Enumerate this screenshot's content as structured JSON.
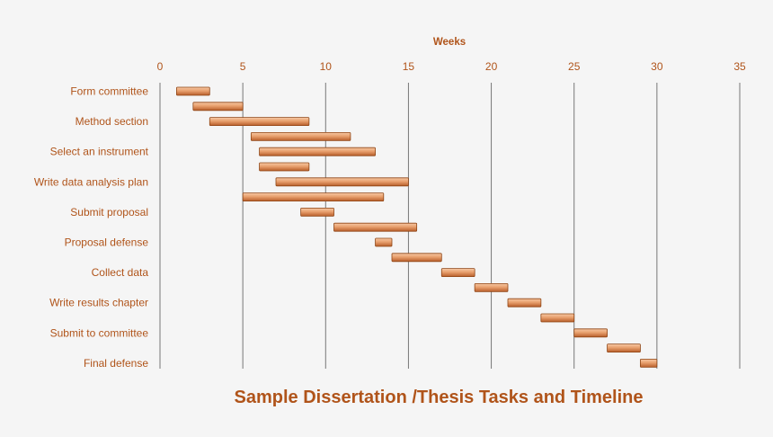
{
  "chart_data": {
    "type": "bar",
    "orientation": "horizontal-gantt",
    "title": "Sample Dissertation /Thesis Tasks and Timeline",
    "xlabel": "Weeks",
    "xlim": [
      0,
      35
    ],
    "x_ticks": [
      0,
      5,
      10,
      15,
      20,
      25,
      30,
      35
    ],
    "grid": "vertical",
    "category_labels": [
      "Form committee",
      "Method section",
      "Select an instrument",
      "Write data analysis plan",
      "Submit proposal",
      "Proposal defense",
      "Collect data",
      "Write results chapter",
      "Submit to committee",
      "Final defense"
    ],
    "tasks": [
      {
        "start": 1,
        "end": 3
      },
      {
        "start": 2,
        "end": 5
      },
      {
        "start": 3,
        "end": 9
      },
      {
        "start": 5.5,
        "end": 11.5
      },
      {
        "start": 6,
        "end": 13
      },
      {
        "start": 6,
        "end": 9
      },
      {
        "start": 7,
        "end": 15
      },
      {
        "start": 5,
        "end": 13.5
      },
      {
        "start": 8.5,
        "end": 10.5
      },
      {
        "start": 10.5,
        "end": 15.5
      },
      {
        "start": 13,
        "end": 14
      },
      {
        "start": 14,
        "end": 17
      },
      {
        "start": 17,
        "end": 19
      },
      {
        "start": 19,
        "end": 21
      },
      {
        "start": 21,
        "end": 23
      },
      {
        "start": 23,
        "end": 25
      },
      {
        "start": 25,
        "end": 27
      },
      {
        "start": 27,
        "end": 29
      },
      {
        "start": 29,
        "end": 30
      }
    ],
    "colors": {
      "bar_light": "#f6c8a4",
      "bar_mid": "#e8a06e",
      "bar_dark": "#b85e2a",
      "bar_stroke": "#8f4515",
      "text": "#b0541a",
      "grid": "#777777"
    }
  }
}
